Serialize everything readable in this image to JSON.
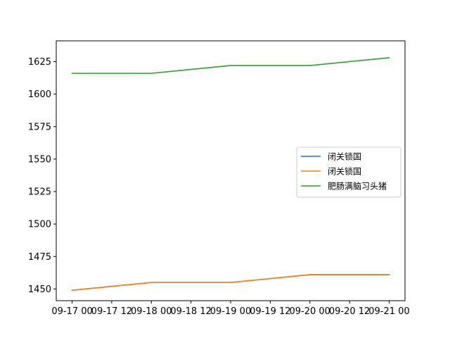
{
  "chart_data": {
    "type": "line",
    "x_ticks": [
      "09-17 00",
      "09-17 12",
      "09-18 00",
      "09-18 12",
      "09-19 00",
      "09-19 12",
      "09-20 00",
      "09-20 12",
      "09-21 00"
    ],
    "x_tick_values": [
      0,
      0.5,
      1,
      1.5,
      2,
      2.5,
      3,
      3.5,
      4
    ],
    "y_ticks": [
      1450,
      1475,
      1500,
      1525,
      1550,
      1575,
      1600,
      1625
    ],
    "xlim": [
      -0.2,
      4.2
    ],
    "ylim": [
      1441,
      1641
    ],
    "grid": false,
    "legend_position": "center-right",
    "series": [
      {
        "name": "闭关锁国",
        "color": "#1f77b4",
        "x": [
          0,
          1,
          2,
          3,
          4
        ],
        "y": [
          1449,
          1455,
          1455,
          1461,
          1461
        ]
      },
      {
        "name": "闭关锁国",
        "color": "#ff7f0e",
        "x": [
          0,
          1,
          2,
          3,
          4
        ],
        "y": [
          1449,
          1455,
          1455,
          1461,
          1461
        ]
      },
      {
        "name": "肥肠满脑习头猪",
        "color": "#2ca02c",
        "x": [
          0,
          1,
          2,
          3,
          4
        ],
        "y": [
          1616,
          1616,
          1622,
          1622,
          1628
        ]
      }
    ]
  }
}
